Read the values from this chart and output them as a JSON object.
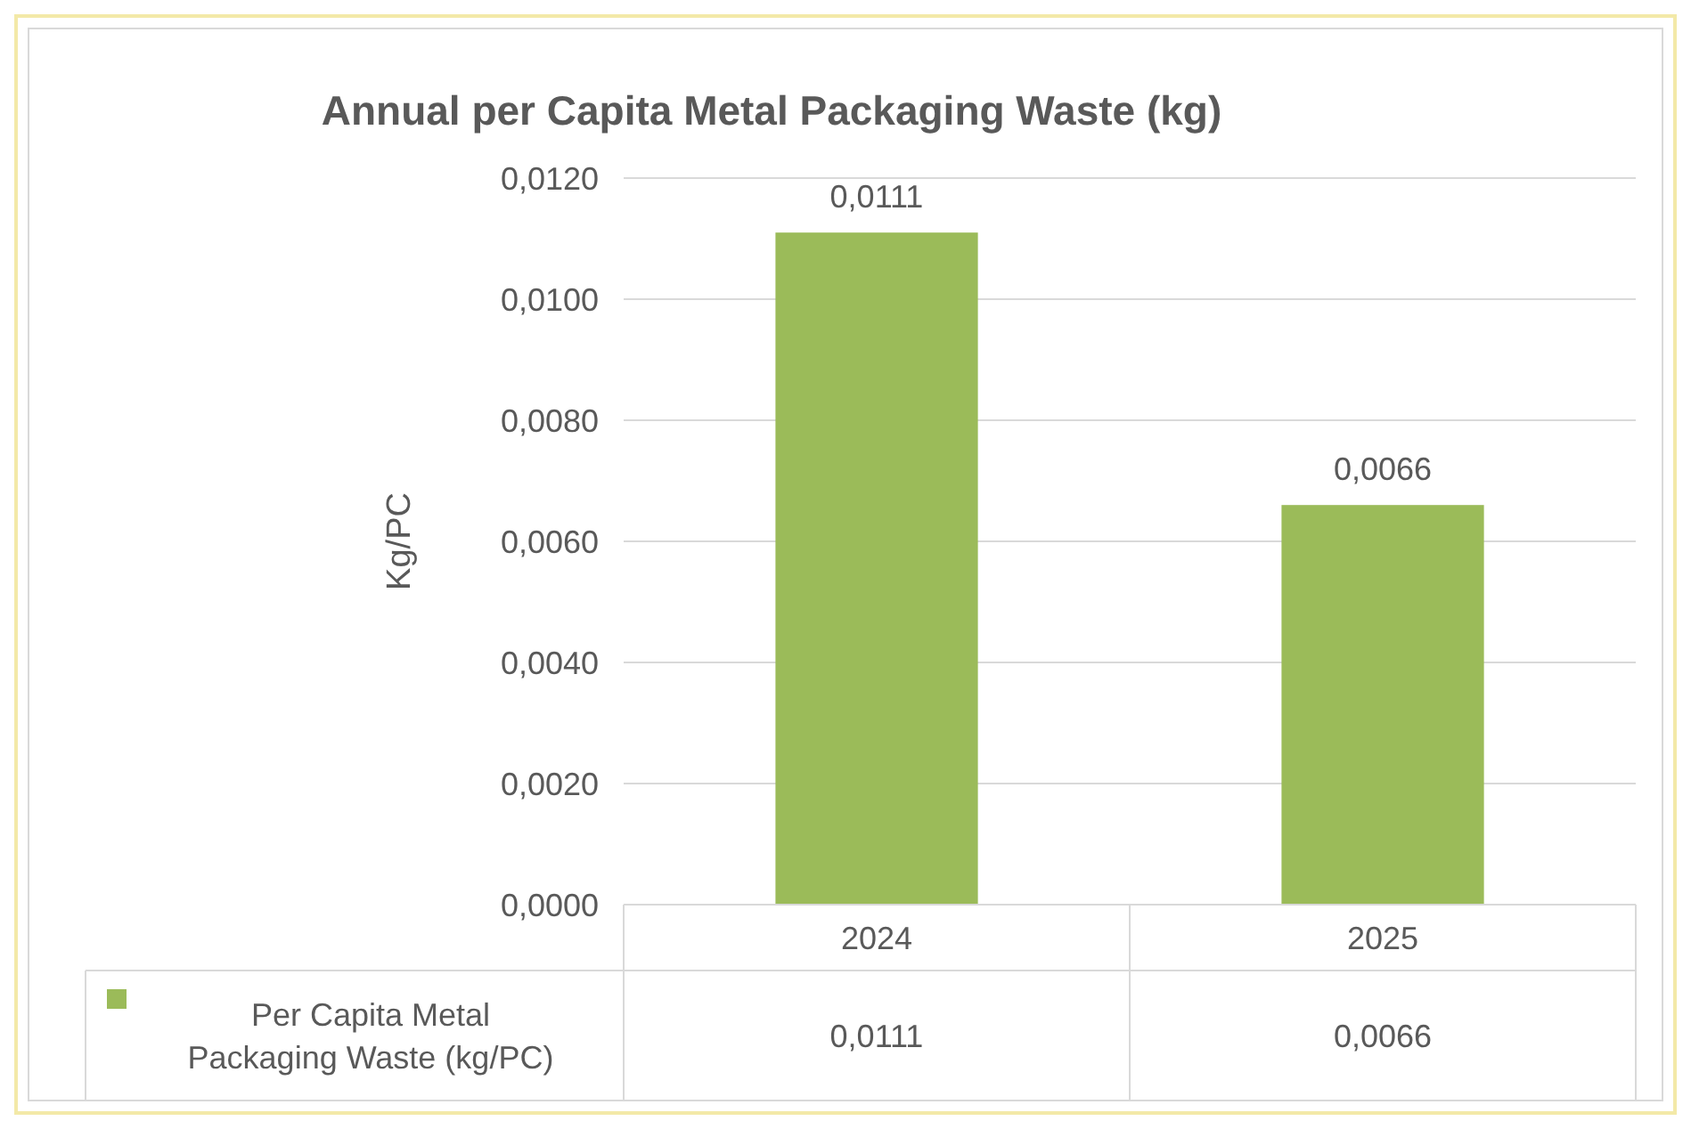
{
  "chart_data": {
    "type": "bar",
    "title": "Annual per Capita Metal Packaging Waste (kg)",
    "ylabel": "Kg/PC",
    "categories": [
      "2024",
      "2025"
    ],
    "series": [
      {
        "name": "Per Capita Metal Packaging Waste (kg/PC)",
        "color": "#9bbb59",
        "values": [
          0.0111,
          0.0066
        ],
        "value_labels": [
          "0,0111",
          "0,0066"
        ]
      }
    ],
    "ylim": [
      0,
      0.012
    ],
    "yticks": [
      {
        "value": 0,
        "label": "0,0000"
      },
      {
        "value": 0.002,
        "label": "0,0020"
      },
      {
        "value": 0.004,
        "label": "0,0040"
      },
      {
        "value": 0.006,
        "label": "0,0060"
      },
      {
        "value": 0.008,
        "label": "0,0080"
      },
      {
        "value": 0.01,
        "label": "0,0100"
      },
      {
        "value": 0.012,
        "label": "0,0120"
      }
    ],
    "grid": "y",
    "legend": "bottom left"
  }
}
